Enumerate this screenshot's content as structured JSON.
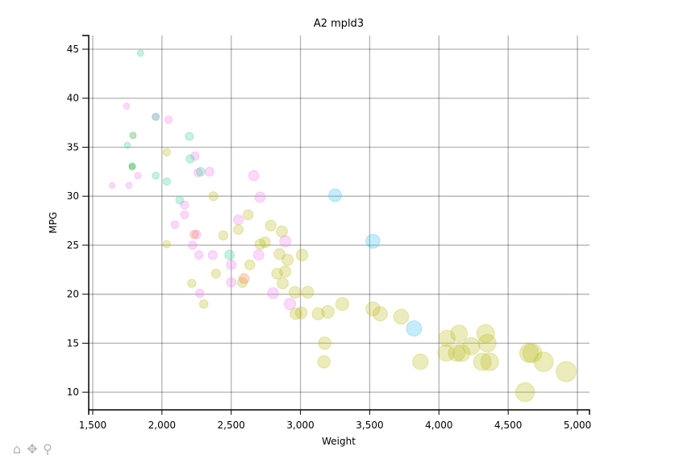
{
  "chart_data": {
    "type": "scatter",
    "title": "A2 mpld3",
    "xlabel": "Weight",
    "ylabel": "MPG",
    "xlim": [
      1471,
      5087
    ],
    "ylim": [
      8.2,
      46.4
    ],
    "xticks": [
      1500,
      2000,
      2500,
      3000,
      3500,
      4000,
      4500,
      5000
    ],
    "xtick_labels": [
      "1,500",
      "2,000",
      "2,500",
      "3,000",
      "3,500",
      "4,000",
      "4,500",
      "5,000"
    ],
    "yticks": [
      10,
      15,
      20,
      25,
      30,
      35,
      40,
      45
    ],
    "ytick_labels": [
      "10",
      "15",
      "20",
      "25",
      "30",
      "35",
      "40",
      "45"
    ],
    "grid": true,
    "marker_alpha": 0.3,
    "groups": [
      {
        "color": "#bcbd22",
        "points": [
          [
            2035,
            34.5
          ],
          [
            2035,
            25.1
          ],
          [
            2372,
            30.0
          ],
          [
            2622,
            28.1
          ],
          [
            2442,
            26.0
          ],
          [
            2552,
            26.6
          ],
          [
            2785,
            27.0
          ],
          [
            2866,
            26.4
          ],
          [
            2744,
            25.3
          ],
          [
            2709,
            25.1
          ],
          [
            2634,
            23.0
          ],
          [
            2390,
            22.1
          ],
          [
            2215,
            21.1
          ],
          [
            2581,
            21.2
          ],
          [
            2302,
            19.0
          ],
          [
            2849,
            24.1
          ],
          [
            2907,
            23.5
          ],
          [
            3012,
            24.0
          ],
          [
            2890,
            22.3
          ],
          [
            2832,
            22.1
          ],
          [
            2872,
            21.1
          ],
          [
            2960,
            20.2
          ],
          [
            3052,
            20.2
          ],
          [
            2966,
            18.0
          ],
          [
            3006,
            18.1
          ],
          [
            3128,
            18.0
          ],
          [
            3198,
            18.2
          ],
          [
            3302,
            19.0
          ],
          [
            3175,
            15.0
          ],
          [
            3169,
            13.1
          ],
          [
            3523,
            18.5
          ],
          [
            3576,
            18.0
          ],
          [
            3727,
            17.7
          ],
          [
            3866,
            13.1
          ],
          [
            4058,
            15.5
          ],
          [
            4145,
            16.0
          ],
          [
            4052,
            14.0
          ],
          [
            4128,
            14.0
          ],
          [
            4163,
            14.0
          ],
          [
            4233,
            14.7
          ],
          [
            4314,
            13.1
          ],
          [
            4337,
            16.0
          ],
          [
            4349,
            15.0
          ],
          [
            4366,
            13.1
          ],
          [
            4651,
            14.0
          ],
          [
            4674,
            14.0
          ],
          [
            4756,
            13.1
          ],
          [
            4919,
            12.1
          ],
          [
            4622,
            10.0
          ]
        ]
      },
      {
        "color": "#ee82ee",
        "points": [
          [
            1744,
            39.2
          ],
          [
            2047,
            37.8
          ],
          [
            1955,
            38.1
          ],
          [
            2238,
            34.1
          ],
          [
            2262,
            32.4
          ],
          [
            2343,
            32.5
          ],
          [
            1826,
            32.1
          ],
          [
            1640,
            31.1
          ],
          [
            1762,
            31.1
          ],
          [
            2663,
            32.1
          ],
          [
            2709,
            29.9
          ],
          [
            2163,
            29.1
          ],
          [
            2163,
            28.1
          ],
          [
            2093,
            27.1
          ],
          [
            2552,
            27.6
          ],
          [
            2250,
            26.1
          ],
          [
            2221,
            25.0
          ],
          [
            2267,
            24.0
          ],
          [
            2366,
            24.0
          ],
          [
            2500,
            23.0
          ],
          [
            2890,
            25.4
          ],
          [
            2698,
            24.0
          ],
          [
            2500,
            21.2
          ],
          [
            2273,
            20.1
          ],
          [
            2802,
            20.1
          ],
          [
            2924,
            19.0
          ]
        ]
      },
      {
        "color": "#3fcf9a",
        "points": [
          [
            1845,
            44.6
          ],
          [
            1955,
            38.1
          ],
          [
            2198,
            36.1
          ],
          [
            1750,
            35.2
          ],
          [
            2203,
            33.8
          ],
          [
            1785,
            33.1
          ],
          [
            1955,
            32.1
          ],
          [
            2280,
            32.5
          ],
          [
            2035,
            31.5
          ],
          [
            2128,
            29.6
          ],
          [
            2488,
            24.0
          ]
        ]
      },
      {
        "color": "#2ca02c",
        "points": [
          [
            1791,
            36.2
          ],
          [
            1785,
            33.0
          ]
        ]
      },
      {
        "color": "#3cc0f0",
        "points": [
          [
            3250,
            30.1
          ],
          [
            3523,
            25.4
          ],
          [
            3820,
            16.5
          ]
        ]
      },
      {
        "color": "#ff7f50",
        "points": [
          [
            2233,
            26.1
          ],
          [
            2593,
            21.6
          ]
        ]
      }
    ]
  },
  "toolbar": {
    "icons": [
      "home-icon",
      "move-icon",
      "zoom-icon"
    ],
    "glyphs": [
      "⌂",
      "✥",
      "⚲"
    ]
  }
}
